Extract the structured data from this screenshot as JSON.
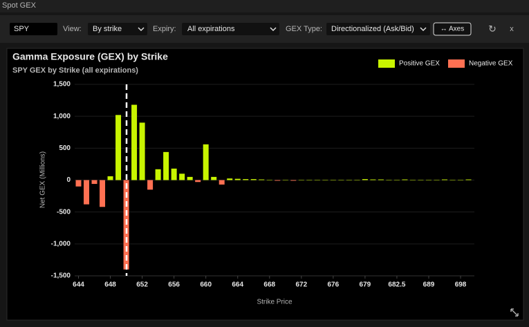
{
  "ui": {
    "window_title": "Spot GEX",
    "symbol": "SPY",
    "view_label": "View:",
    "view_value": "By strike",
    "expiry_label": "Expiry:",
    "expiry_value": "All expirations",
    "gex_type_label": "GEX Type:",
    "gex_type_value": "Directionalized (Ask/Bid)",
    "axes_button": "↔ Axes",
    "refresh_icon": "↻",
    "close_icon": "x"
  },
  "chart_data": {
    "type": "bar",
    "title": "Gamma Exposure (GEX) by Strike",
    "subtitle": "SPY GEX by Strike (all expirations)",
    "x_label": "Strike Price",
    "y_label": "Net GEX (Millions)",
    "categories": [
      "644",
      null,
      null,
      null,
      "648",
      null,
      null,
      null,
      "652",
      null,
      null,
      null,
      "656",
      null,
      null,
      null,
      "660",
      null,
      null,
      null,
      "664",
      null,
      null,
      null,
      "668",
      null,
      null,
      null,
      "672",
      null,
      null,
      null,
      "676",
      null,
      null,
      null,
      "679",
      null,
      null,
      null,
      "682.5",
      null,
      null,
      null,
      "689",
      null,
      null,
      null,
      "698",
      null
    ],
    "series": [
      {
        "name": "Positive GEX",
        "color": "#c8f400",
        "values": [
          null,
          null,
          null,
          null,
          60,
          1020,
          null,
          1180,
          900,
          null,
          170,
          440,
          180,
          100,
          50,
          null,
          560,
          50,
          null,
          25,
          20,
          15,
          15,
          10,
          5,
          null,
          5,
          null,
          5,
          5,
          5,
          5,
          5,
          5,
          5,
          5,
          15,
          10,
          10,
          5,
          5,
          10,
          5,
          5,
          5,
          5,
          10,
          5,
          5,
          10
        ]
      },
      {
        "name": "Negative GEX",
        "color": "#ff7052",
        "values": [
          -100,
          -380,
          -60,
          -420,
          null,
          null,
          -1400,
          null,
          null,
          -150,
          null,
          null,
          null,
          null,
          null,
          -30,
          null,
          null,
          -70,
          null,
          null,
          null,
          null,
          null,
          null,
          -10,
          null,
          -10,
          null,
          null,
          null,
          null,
          null,
          null,
          null,
          null,
          null,
          null,
          null,
          null,
          null,
          null,
          null,
          null,
          null,
          null,
          null,
          null,
          null,
          null
        ]
      }
    ],
    "ylim": [
      -1500,
      1500
    ],
    "yticks": [
      {
        "value": -1500,
        "label": "-1,500"
      },
      {
        "value": -1000,
        "label": "-1,000"
      },
      -500,
      0,
      500,
      {
        "value": 1000,
        "label": "1,000"
      },
      {
        "value": 1500,
        "label": "1,500"
      }
    ],
    "grid": true,
    "legend": "top-right"
  }
}
